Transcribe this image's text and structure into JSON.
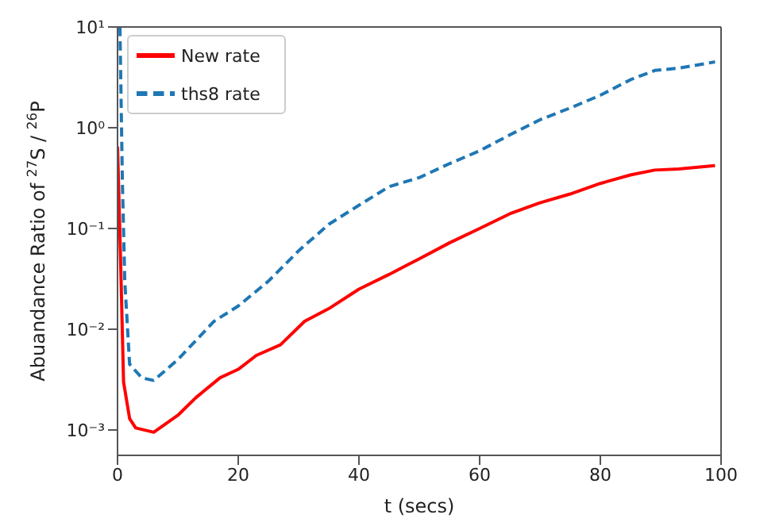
{
  "chart_data": {
    "type": "line",
    "xlabel": "t (secs)",
    "ylabel": "Abuandance Ratio of $^{27}$S / $^{26}$P",
    "log": "y",
    "legend": "top left",
    "marker": "none",
    "xlim": [
      0,
      100
    ],
    "xticks": [
      0,
      20,
      40,
      60,
      80,
      100
    ],
    "ylim": [
      0.00056,
      10
    ],
    "yticks": [
      {
        "value": 0.001,
        "label": "10⁻³"
      },
      {
        "value": 0.01,
        "label": "10⁻²"
      },
      {
        "value": 0.1,
        "label": "10⁻¹"
      },
      {
        "value": 1,
        "label": "10⁰"
      },
      {
        "value": 10,
        "label": "10¹"
      }
    ],
    "series": [
      {
        "name": "New rate",
        "color": "#ff0000",
        "line_style": "solid",
        "x": [
          0,
          0.5,
          1,
          2,
          3,
          6,
          10,
          13,
          17,
          20,
          23,
          27,
          31,
          35,
          40,
          45,
          50,
          55,
          60,
          65,
          70,
          75,
          80,
          85,
          89,
          93,
          99
        ],
        "values": [
          0.65,
          0.05,
          0.003,
          0.0013,
          0.00105,
          0.00095,
          0.0014,
          0.0021,
          0.0033,
          0.004,
          0.0055,
          0.007,
          0.012,
          0.016,
          0.025,
          0.035,
          0.05,
          0.072,
          0.1,
          0.14,
          0.18,
          0.22,
          0.28,
          0.34,
          0.38,
          0.39,
          0.42
        ]
      },
      {
        "name": "ths8 rate",
        "color": "#1f77b4",
        "line_style": "dashed",
        "x": [
          0.4,
          0.8,
          1.2,
          2,
          4,
          6,
          10,
          16,
          20,
          25,
          30,
          35,
          40,
          45,
          50,
          55,
          60,
          65,
          70,
          75,
          80,
          85,
          89,
          93,
          99
        ],
        "values": [
          10,
          0.3,
          0.03,
          0.0045,
          0.0033,
          0.0031,
          0.005,
          0.012,
          0.017,
          0.03,
          0.06,
          0.11,
          0.17,
          0.26,
          0.32,
          0.44,
          0.59,
          0.85,
          1.2,
          1.57,
          2.1,
          3.0,
          3.7,
          3.9,
          4.5
        ]
      }
    ]
  }
}
